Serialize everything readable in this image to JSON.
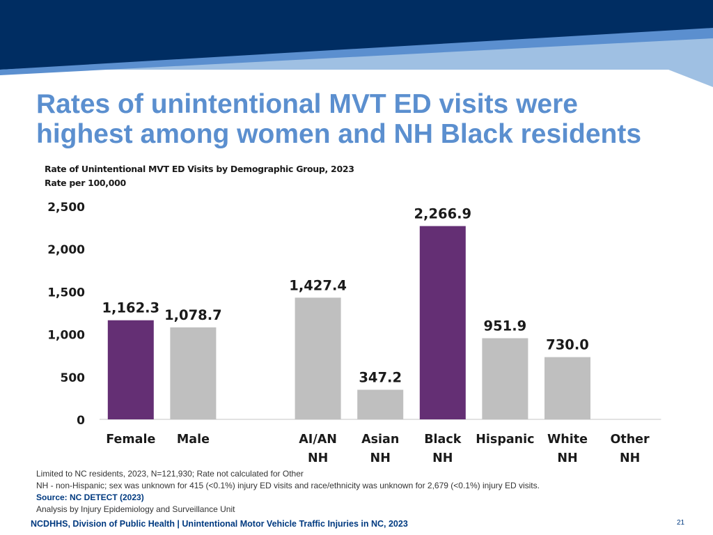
{
  "slide": {
    "title_line1": "Rates of unintentional MVT ED visits were",
    "title_line2": "highest among women and NH Black residents",
    "footer": "NCDHHS, Division of Public Health | Unintentional Motor Vehicle Traffic Injuries in NC, 2023",
    "page_number": "21",
    "notes": [
      "Limited to NC residents, 2023, N=121,930; Rate not calculated for Other",
      "NH - non-Hispanic; sex was unknown for 415 (<0.1%) injury ED visits and race/ethnicity was unknown for 2,679 (<0.1%) injury ED visits."
    ],
    "source": "Source: NC DETECT (2023)",
    "analysis": "Analysis by Injury Epidemiology and Surveillance Unit"
  },
  "colors": {
    "banner_dark": "#002d62",
    "banner_light": "#9fc0e3",
    "banner_mid": "#5b8fcf",
    "title": "#5b8fcf",
    "highlight_bar": "#642f74",
    "default_bar": "#bfbfbf"
  },
  "chart_data": {
    "type": "bar",
    "title": "Rate of Unintentional MVT ED Visits by Demographic Group, 2023",
    "subtitle": "Rate per 100,000",
    "ylim": [
      0,
      2500
    ],
    "yticks": [
      "0",
      "500",
      "1,000",
      "1,500",
      "2,000",
      "2,500"
    ],
    "grid": false,
    "categories": [
      [
        "Female"
      ],
      [
        "Male"
      ],
      [],
      [
        "AI/AN",
        "NH"
      ],
      [
        "Asian",
        "NH"
      ],
      [
        "Black",
        "NH"
      ],
      [
        "Hispanic"
      ],
      [
        "White",
        "NH"
      ],
      [
        "Other",
        "NH"
      ]
    ],
    "values": [
      1162.3,
      1078.7,
      null,
      1427.4,
      347.2,
      2266.9,
      951.9,
      730.0,
      null
    ],
    "labels": [
      "1,162.3",
      "1,078.7",
      "",
      "1,427.4",
      "347.2",
      "2,266.9",
      "951.9",
      "730.0",
      ""
    ],
    "highlighted": [
      true,
      false,
      false,
      false,
      false,
      true,
      false,
      false,
      false
    ]
  }
}
